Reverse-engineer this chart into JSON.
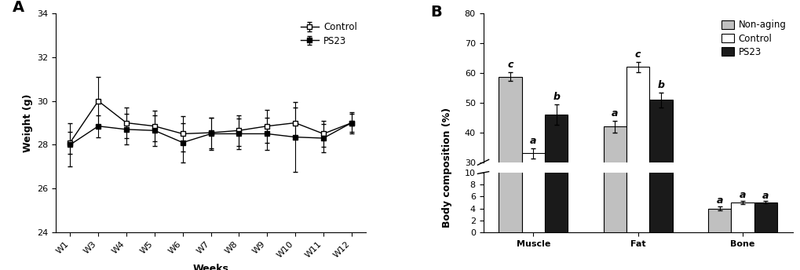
{
  "panel_a": {
    "weeks": [
      "W1",
      "W3",
      "W4",
      "W5",
      "W6",
      "W7",
      "W8",
      "W9",
      "W10",
      "W11",
      "W12"
    ],
    "control_mean": [
      28.1,
      30.0,
      29.0,
      28.85,
      28.5,
      28.55,
      28.65,
      28.85,
      29.0,
      28.5,
      29.0
    ],
    "control_err": [
      0.5,
      1.1,
      0.7,
      0.7,
      0.8,
      0.7,
      0.7,
      0.75,
      0.7,
      0.6,
      0.5
    ],
    "ps23_mean": [
      28.0,
      28.85,
      28.7,
      28.65,
      28.1,
      28.5,
      28.5,
      28.5,
      28.35,
      28.3,
      29.0
    ],
    "ps23_err": [
      1.0,
      0.5,
      0.7,
      0.7,
      0.9,
      0.75,
      0.7,
      0.75,
      1.6,
      0.65,
      0.4
    ],
    "ylabel": "Weight (g)",
    "xlabel": "Weeks",
    "ylim": [
      24,
      34
    ],
    "yticks": [
      24,
      26,
      28,
      30,
      32,
      34
    ]
  },
  "panel_b": {
    "groups": [
      "Muscle",
      "Fat",
      "Bone"
    ],
    "nonaging_mean": [
      58.8,
      42.0,
      4.0
    ],
    "nonaging_err": [
      1.5,
      2.0,
      0.3
    ],
    "control_mean": [
      33.0,
      62.0,
      5.0
    ],
    "control_err": [
      1.8,
      1.8,
      0.3
    ],
    "ps23_mean": [
      46.0,
      51.0,
      5.0
    ],
    "ps23_err": [
      3.5,
      2.5,
      0.2
    ],
    "nonaging_letters": [
      "c",
      "a",
      "a"
    ],
    "control_letters": [
      "a",
      "c",
      "a"
    ],
    "ps23_letters": [
      "b",
      "b",
      "a"
    ],
    "ylabel": "Body composition (%)",
    "upper_ylim": [
      30,
      80
    ],
    "upper_yticks": [
      30,
      40,
      50,
      60,
      70,
      80
    ],
    "lower_ylim": [
      0,
      10
    ],
    "lower_yticks": [
      0,
      2,
      4,
      6,
      8,
      10
    ],
    "bar_width": 0.22,
    "colors": [
      "#c0c0c0",
      "#ffffff",
      "#1a1a1a"
    ],
    "legend_labels": [
      "Non-aging",
      "Control",
      "PS23"
    ]
  }
}
